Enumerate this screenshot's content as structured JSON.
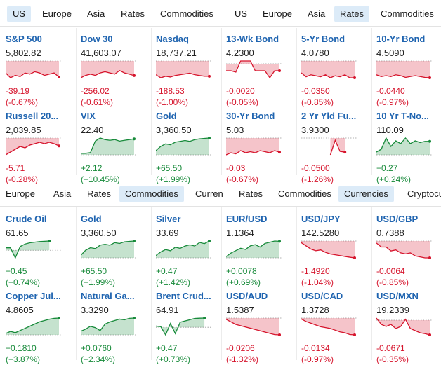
{
  "top_tabs_left": [
    "US",
    "Europe",
    "Asia",
    "Rates",
    "Commodities"
  ],
  "top_tabs_right": [
    "US",
    "Europe",
    "Asia",
    "Rates",
    "Commodities"
  ],
  "mid_tabs_left": [
    "Europe",
    "Asia",
    "Rates",
    "Commodities",
    "Curren"
  ],
  "mid_tabs_right": [
    "Rates",
    "Commodities",
    "Currencies",
    "Cryptocu"
  ],
  "colors": {
    "up": "#178a3a",
    "down": "#d6142c",
    "link": "#1f64b0",
    "active_tab": "#dcebf8"
  },
  "section1": [
    {
      "name": "S&P 500",
      "price": "5,802.82",
      "change": "-39.19",
      "pct": "(-0.67%)",
      "dir": "down",
      "trend": [
        -0.5,
        -0.7,
        -0.6,
        -0.65,
        -0.5,
        -0.55,
        -0.45,
        -0.5,
        -0.6,
        -0.55,
        -0.5,
        -0.67
      ]
    },
    {
      "name": "Dow 30",
      "price": "41,603.07",
      "change": "-256.02",
      "pct": "(-0.61%)",
      "dir": "down",
      "trend": [
        -0.7,
        -0.6,
        -0.55,
        -0.6,
        -0.5,
        -0.45,
        -0.5,
        -0.55,
        -0.4,
        -0.5,
        -0.55,
        -0.61
      ]
    },
    {
      "name": "Nasdaq",
      "price": "18,737.21",
      "change": "-188.53",
      "pct": "(-1.00%)",
      "dir": "down",
      "trend": [
        -0.9,
        -1.1,
        -1.0,
        -1.05,
        -0.95,
        -0.9,
        -0.85,
        -0.8,
        -0.9,
        -0.95,
        -1.0,
        -1.0
      ]
    },
    {
      "name": "13-Wk Bond",
      "price": "4.2300",
      "change": "-0.0020",
      "pct": "(-0.05%)",
      "dir": "down",
      "trend": [
        -0.05,
        -0.05,
        -0.06,
        0.02,
        0.02,
        0.02,
        -0.05,
        -0.05,
        -0.05,
        -0.1,
        -0.05,
        -0.05
      ]
    },
    {
      "name": "5-Yr Bond",
      "price": "4.0780",
      "change": "-0.0350",
      "pct": "(-0.85%)",
      "dir": "down",
      "trend": [
        -0.6,
        -0.8,
        -0.7,
        -0.75,
        -0.8,
        -0.7,
        -0.85,
        -0.75,
        -0.8,
        -0.7,
        -0.85,
        -0.85
      ]
    },
    {
      "name": "10-Yr Bond",
      "price": "4.5090",
      "change": "-0.0440",
      "pct": "(-0.97%)",
      "dir": "down",
      "trend": [
        -0.8,
        -0.9,
        -0.85,
        -0.9,
        -0.8,
        -0.85,
        -0.95,
        -0.9,
        -0.85,
        -0.9,
        -0.95,
        -0.97
      ]
    },
    {
      "name": "Russell 20...",
      "price": "2,039.85",
      "change": "-5.71",
      "pct": "(-0.28%)",
      "dir": "down",
      "trend": [
        -0.6,
        -0.5,
        -0.4,
        -0.3,
        -0.35,
        -0.25,
        -0.2,
        -0.15,
        -0.2,
        -0.15,
        -0.2,
        -0.28
      ]
    },
    {
      "name": "VIX",
      "price": "22.40",
      "change": "+2.12",
      "pct": "(+10.45%)",
      "dir": "up",
      "trend": [
        1,
        1,
        1.5,
        9,
        11,
        10,
        9.5,
        10,
        9,
        9.5,
        10,
        10.45
      ]
    },
    {
      "name": "Gold",
      "price": "3,360.50",
      "change": "+65.50",
      "pct": "(+1.99%)",
      "dir": "up",
      "trend": [
        0.5,
        1.0,
        1.3,
        1.2,
        1.5,
        1.6,
        1.7,
        1.6,
        1.8,
        1.9,
        1.95,
        1.99
      ]
    },
    {
      "name": "30-Yr Bond",
      "price": "5.03",
      "change": "-0.03",
      "pct": "(-0.67%)",
      "dir": "down",
      "trend": [
        -0.8,
        -0.7,
        -0.75,
        -0.6,
        -0.7,
        -0.65,
        -0.7,
        -0.6,
        -0.65,
        -0.7,
        -0.6,
        -0.67
      ]
    },
    {
      "name": "2 Yr Yld Fu...",
      "price": "3.9300",
      "change": "-0.0500",
      "pct": "(-1.26%)",
      "dir": "down",
      "trend": [
        null,
        null,
        null,
        null,
        null,
        null,
        -1.5,
        -0.2,
        -1.2,
        -1.26,
        null,
        null
      ]
    },
    {
      "name": "10 Yr T-No...",
      "price": "110.09",
      "change": "+0.27",
      "pct": "(+0.24%)",
      "dir": "up",
      "trend": [
        0.05,
        0.1,
        0.3,
        0.15,
        0.25,
        0.2,
        0.3,
        0.2,
        0.25,
        0.22,
        0.24,
        0.24
      ]
    }
  ],
  "section2": [
    {
      "name": "Crude Oil",
      "price": "61.65",
      "change": "+0.45",
      "pct": "(+0.74%)",
      "dir": "up",
      "trend": [
        0.2,
        0.2,
        -0.6,
        0.3,
        0.5,
        0.6,
        0.65,
        0.7,
        0.72,
        0.74,
        null,
        null
      ]
    },
    {
      "name": "Gold",
      "price": "3,360.50",
      "change": "+65.50",
      "pct": "(+1.99%)",
      "dir": "up",
      "trend": [
        0.3,
        0.9,
        1.2,
        1.1,
        1.5,
        1.6,
        1.5,
        1.8,
        1.7,
        1.9,
        1.95,
        1.99
      ]
    },
    {
      "name": "Silver",
      "price": "33.69",
      "change": "+0.47",
      "pct": "(+1.42%)",
      "dir": "up",
      "trend": [
        0.2,
        0.5,
        0.7,
        0.6,
        0.9,
        0.8,
        1.0,
        1.1,
        1.0,
        1.3,
        1.2,
        1.42
      ]
    },
    {
      "name": "EUR/USD",
      "price": "1.1364",
      "change": "+0.0078",
      "pct": "(+0.69%)",
      "dir": "up",
      "trend": [
        0.05,
        0.2,
        0.3,
        0.4,
        0.35,
        0.5,
        0.55,
        0.45,
        0.6,
        0.65,
        0.7,
        0.69
      ]
    },
    {
      "name": "USD/JPY",
      "price": "142.5280",
      "change": "-1.4920",
      "pct": "(-1.04%)",
      "dir": "down",
      "trend": [
        -0.1,
        -0.3,
        -0.5,
        -0.6,
        -0.55,
        -0.7,
        -0.8,
        -0.85,
        -0.9,
        -0.95,
        -1.0,
        -1.04
      ]
    },
    {
      "name": "USD/GBP",
      "price": "0.7388",
      "change": "-0.0064",
      "pct": "(-0.85%)",
      "dir": "down",
      "trend": [
        -0.1,
        -0.3,
        -0.3,
        -0.5,
        -0.45,
        -0.6,
        -0.65,
        -0.6,
        -0.75,
        -0.8,
        -0.85,
        -0.85
      ]
    },
    {
      "name": "Copper Jul...",
      "price": "4.8605",
      "change": "+0.1810",
      "pct": "(+3.87%)",
      "dir": "up",
      "trend": [
        0.3,
        0.8,
        0.5,
        1.0,
        1.5,
        2.0,
        2.5,
        3.0,
        3.3,
        3.6,
        3.8,
        3.87
      ]
    },
    {
      "name": "Natural Ga...",
      "price": "3.3290",
      "change": "+0.0760",
      "pct": "(+2.34%)",
      "dir": "up",
      "trend": [
        0.5,
        0.8,
        1.2,
        1.0,
        0.6,
        1.5,
        1.8,
        2.0,
        2.2,
        2.1,
        2.3,
        2.34
      ]
    },
    {
      "name": "Brent Crud...",
      "price": "64.91",
      "change": "+0.47",
      "pct": "(+0.73%)",
      "dir": "up",
      "trend": [
        0.1,
        0.05,
        -0.6,
        0.3,
        -0.5,
        0.4,
        0.5,
        0.6,
        0.7,
        0.72,
        0.73,
        null
      ]
    },
    {
      "name": "USD/AUD",
      "price": "1.5387",
      "change": "-0.0206",
      "pct": "(-1.32%)",
      "dir": "down",
      "trend": [
        -0.1,
        -0.3,
        -0.5,
        -0.6,
        -0.7,
        -0.8,
        -0.9,
        -1.0,
        -1.1,
        -1.2,
        -1.3,
        -1.32
      ]
    },
    {
      "name": "USD/CAD",
      "price": "1.3728",
      "change": "-0.0134",
      "pct": "(-0.97%)",
      "dir": "down",
      "trend": [
        -0.05,
        -0.2,
        -0.3,
        -0.4,
        -0.5,
        -0.55,
        -0.6,
        -0.7,
        -0.8,
        -0.85,
        -0.95,
        -0.97
      ]
    },
    {
      "name": "USD/MXN",
      "price": "19.2339",
      "change": "-0.0671",
      "pct": "(-0.35%)",
      "dir": "down",
      "trend": [
        0.05,
        -0.1,
        -0.15,
        -0.1,
        -0.2,
        -0.15,
        0.02,
        -0.2,
        -0.25,
        -0.3,
        -0.32,
        -0.35
      ]
    }
  ]
}
